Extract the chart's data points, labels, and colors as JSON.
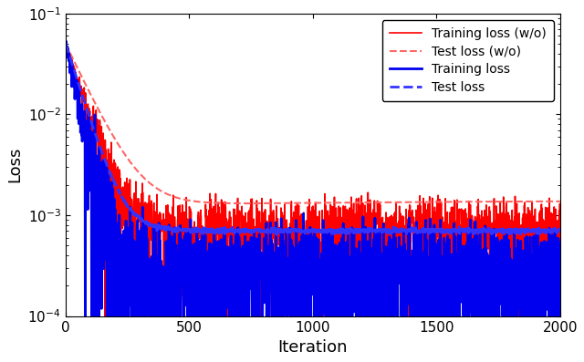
{
  "xlabel": "Iteration",
  "ylabel": "Loss",
  "xlim": [
    0,
    2000
  ],
  "red_solid_color": "#FF0000",
  "red_dash_color": "#FF6666",
  "blue_solid_color": "#0000EE",
  "blue_dash_color": "#3333FF",
  "legend_labels": [
    "Training loss (w/o)",
    "Test loss (w/o)",
    "Training loss",
    "Test loss"
  ],
  "n_points": 2001
}
